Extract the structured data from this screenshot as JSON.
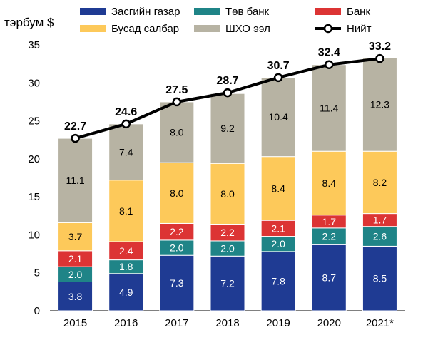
{
  "chart_data": {
    "type": "bar",
    "stacked": true,
    "ylabel": "тэрбум $",
    "ylim": [
      0,
      35
    ],
    "yticks": [
      "0",
      "5",
      "10",
      "15",
      "20",
      "25",
      "30",
      "35"
    ],
    "categories": [
      "2015",
      "2016",
      "2017",
      "2018",
      "2019",
      "2020",
      "2021*"
    ],
    "legend_position": "top",
    "series": [
      {
        "name": "Засгийн газар",
        "color": "#1f3b93",
        "label_color": "#ffffff",
        "values": [
          3.8,
          4.9,
          7.3,
          7.2,
          7.8,
          8.7,
          8.5
        ],
        "labels": [
          "3.8",
          "4.9",
          "7.3",
          "7.2",
          "7.8",
          "8.7",
          "8.5"
        ]
      },
      {
        "name": "Төв банк",
        "color": "#1f8487",
        "label_color": "#ffffff",
        "values": [
          2.0,
          1.8,
          2.0,
          2.0,
          2.0,
          2.2,
          2.6
        ],
        "labels": [
          "2.0",
          "1.8",
          "2.0",
          "2.0",
          "2.0",
          "2.2",
          "2.6"
        ]
      },
      {
        "name": "Банк",
        "color": "#dc3434",
        "label_color": "#ffffff",
        "values": [
          2.1,
          2.4,
          2.2,
          2.2,
          2.1,
          1.7,
          1.7
        ],
        "labels": [
          "2.1",
          "2.4",
          "2.2",
          "2.2",
          "2.1",
          "1.7",
          "1.7"
        ]
      },
      {
        "name": "Бусад салбар",
        "color": "#fdc95a",
        "label_color": "#000000",
        "values": [
          3.7,
          8.1,
          8.0,
          8.0,
          8.4,
          8.4,
          8.2
        ],
        "labels": [
          "3.7",
          "8.1",
          "8.0",
          "8.0",
          "8.4",
          "8.4",
          "8.2"
        ]
      },
      {
        "name": "ШХО ээл",
        "color": "#b7b3a3",
        "label_color": "#000000",
        "values": [
          11.1,
          7.4,
          8.0,
          9.2,
          10.4,
          11.4,
          12.3
        ],
        "labels": [
          "11.1",
          "7.4",
          "8.0",
          "9.2",
          "10.4",
          "11.4",
          "12.3"
        ]
      }
    ],
    "total": {
      "name": "Нийт",
      "type": "line",
      "color": "#000000",
      "values": [
        22.7,
        24.6,
        27.5,
        28.7,
        30.7,
        32.4,
        33.2
      ],
      "labels": [
        "22.7",
        "24.6",
        "27.5",
        "28.7",
        "30.7",
        "32.4",
        "33.2"
      ]
    }
  }
}
